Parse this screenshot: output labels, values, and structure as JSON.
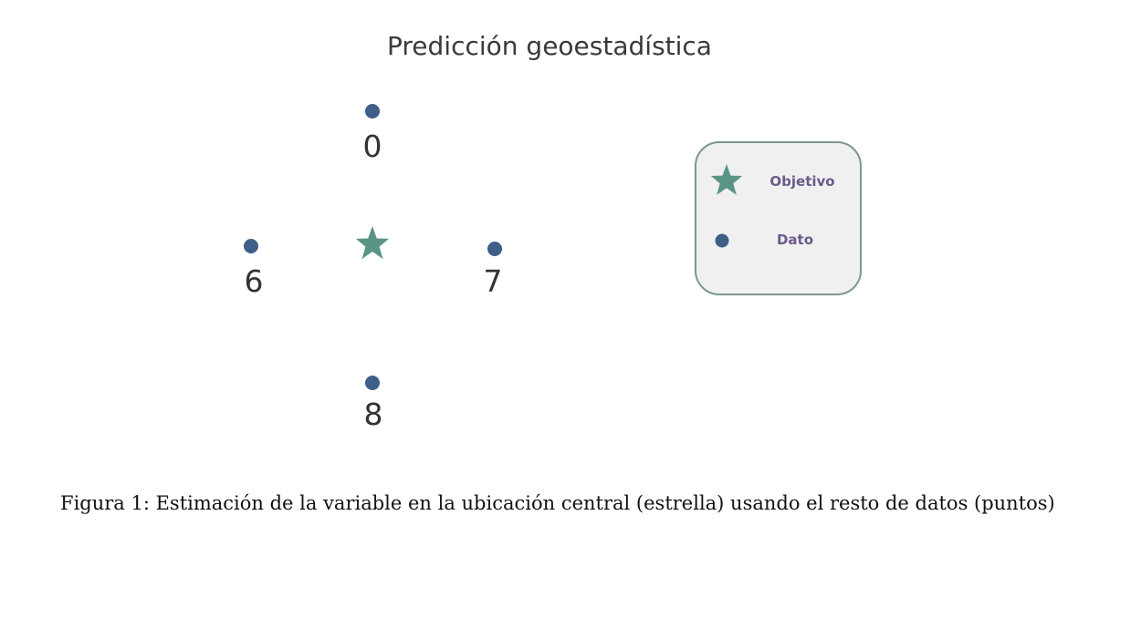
{
  "diagram": {
    "title": "Predicción geoestadística",
    "points": [
      {
        "label": "0",
        "role": "dato"
      },
      {
        "label": "6",
        "role": "dato"
      },
      {
        "label": "7",
        "role": "dato"
      },
      {
        "label": "8",
        "role": "dato"
      }
    ],
    "target": {
      "role": "objetivo"
    },
    "legend": {
      "target_label": "Objetivo",
      "data_label": "Dato"
    },
    "colors": {
      "point": "#3f5f88",
      "star": "#5a9486",
      "legend_border": "#7c9690",
      "legend_fill": "#f0f0f0",
      "legend_text": "#6a5b8c"
    }
  },
  "caption": "Figura 1: Estimación de la variable en la ubicación central (estrella) usando el resto de datos (puntos)"
}
